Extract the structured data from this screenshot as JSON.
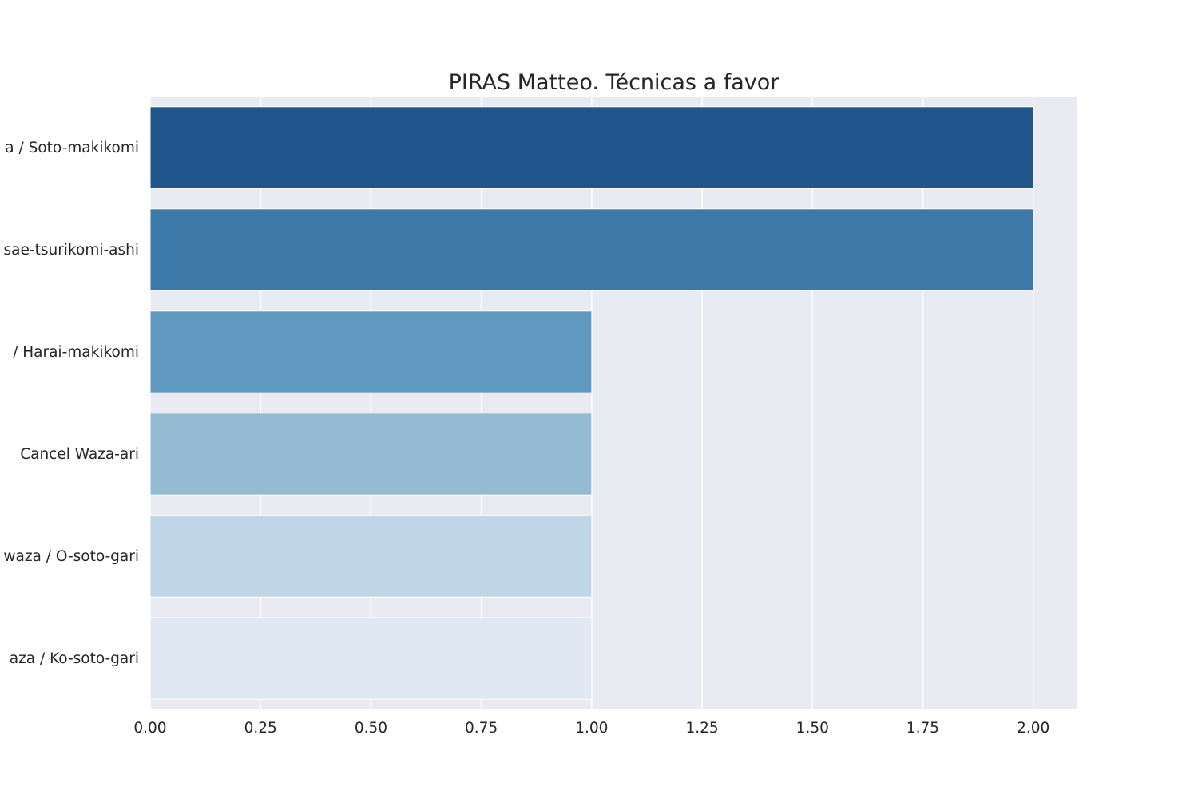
{
  "chart_data": {
    "type": "bar",
    "orientation": "horizontal",
    "title": "PIRAS Matteo. Técnicas a favor",
    "xlabel": "",
    "ylabel": "",
    "categories": [
      "a / Soto-makikomi",
      "sae-tsurikomi-ashi",
      "/ Harai-makikomi",
      "Cancel Waza-ari",
      "waza / O-soto-gari",
      "aza / Ko-soto-gari"
    ],
    "values": [
      2,
      2,
      1,
      1,
      1,
      1
    ],
    "colors": [
      "#21568c",
      "#3c79a8",
      "#619ac0",
      "#94bbd3",
      "#c0d5e6",
      "#dfe8f3"
    ],
    "xlim": [
      0,
      2.1
    ],
    "xticks": [
      "0.00",
      "0.25",
      "0.50",
      "0.75",
      "1.00",
      "1.25",
      "1.50",
      "1.75",
      "2.00"
    ],
    "grid": true,
    "background": "#eaeaf2",
    "grid_color": "#ffffff"
  }
}
